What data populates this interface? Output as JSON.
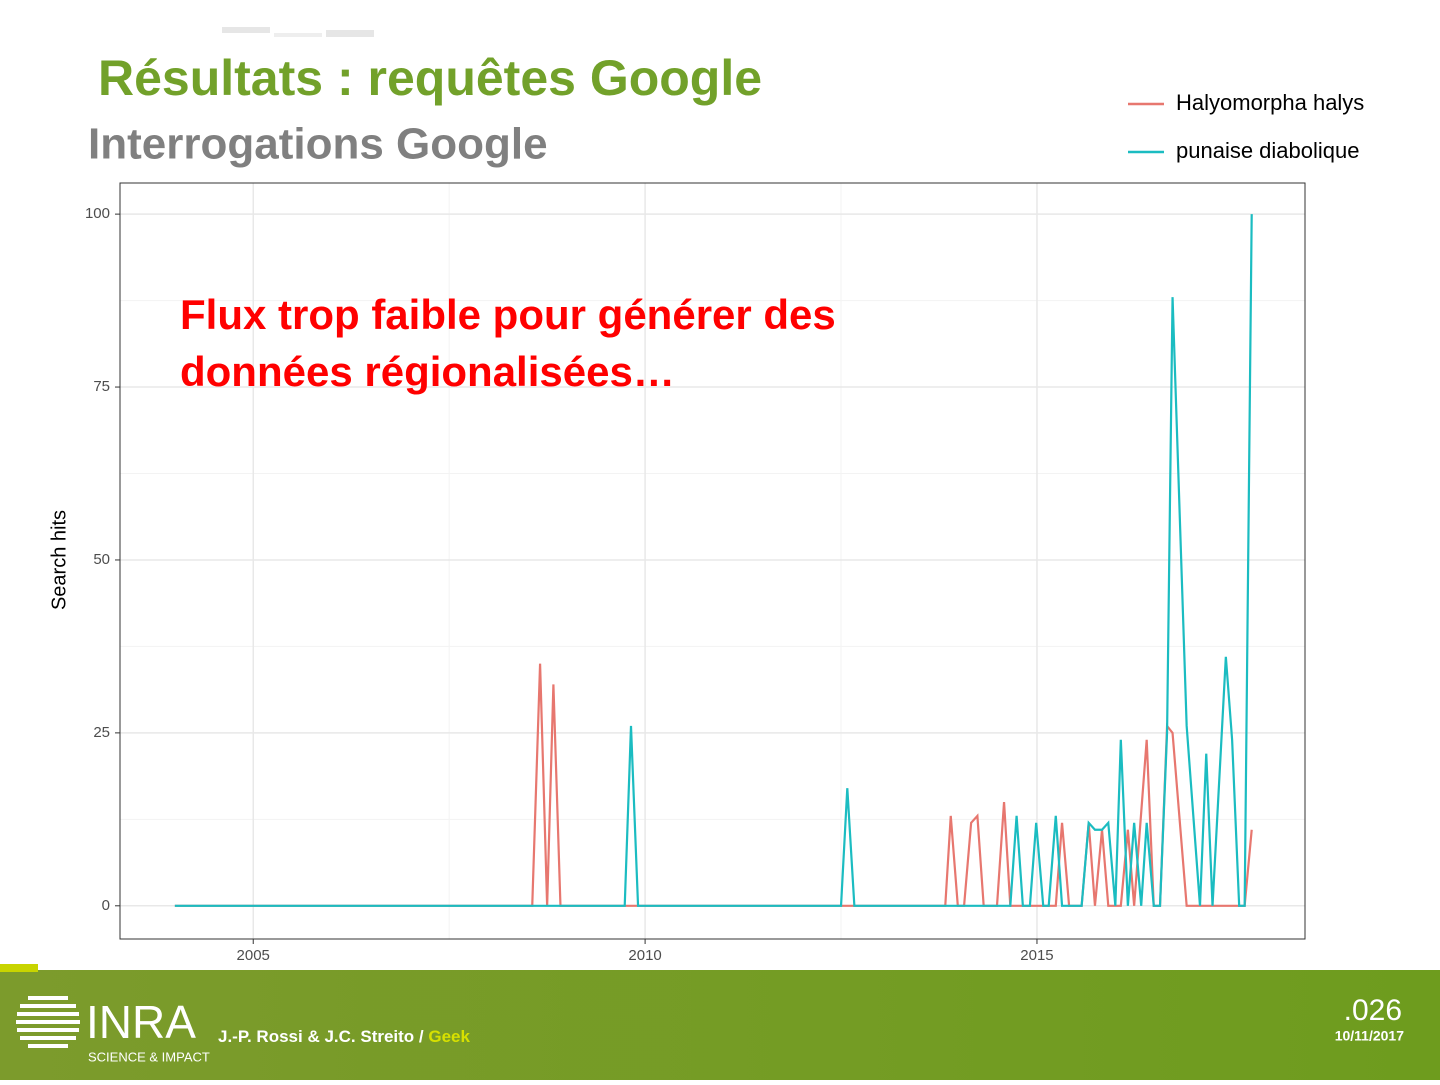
{
  "slide": {
    "title": "Résultats : requêtes Google",
    "subtitle": "Interrogations Google",
    "annotation": [
      "Flux trop faible pour générer des",
      "données régionalisées…"
    ],
    "footer": {
      "authors": "J.-P. Rossi & J.C. Streito / ",
      "tag": "Geek",
      "page": ".026",
      "date": "10/11/2017",
      "logo": "INRA",
      "logo_sub": "SCIENCE & IMPACT"
    }
  },
  "chart_data": {
    "type": "line",
    "y_label": "Search hits",
    "xlim": [
      2003.3,
      2018.42
    ],
    "ylim": [
      -4.8,
      104.5
    ],
    "xticks": [
      2005,
      2010,
      2015
    ],
    "yticks": [
      0,
      25,
      50,
      75,
      100
    ],
    "grid": true,
    "legend": "top-right",
    "series": [
      {
        "name": "Halyomorpha halys",
        "color": "#e7776f",
        "x": [
          2004.0,
          2008.56,
          2008.66,
          2008.75,
          2008.83,
          2008.92,
          2013.83,
          2013.9,
          2013.99,
          2014.07,
          2014.16,
          2014.24,
          2014.32,
          2014.49,
          2014.58,
          2014.66,
          2015.24,
          2015.32,
          2015.41,
          2015.57,
          2015.66,
          2015.74,
          2015.83,
          2015.91,
          2016.07,
          2016.16,
          2016.24,
          2016.4,
          2016.49,
          2016.57,
          2016.66,
          2016.73,
          2016.91,
          2017.65,
          2017.74
        ],
        "values": [
          0,
          0,
          35,
          0,
          32,
          0,
          0,
          13,
          0,
          0,
          12,
          13,
          0,
          0,
          15,
          0,
          0,
          12,
          0,
          0,
          12,
          0,
          11,
          0,
          0,
          11,
          0,
          24,
          0,
          0,
          26,
          25,
          0,
          0,
          11
        ]
      },
      {
        "name": "punaise diabolique",
        "color": "#1bbcc1",
        "x": [
          2004.0,
          2009.74,
          2009.82,
          2009.91,
          2012.5,
          2012.58,
          2012.67,
          2014.66,
          2014.74,
          2014.82,
          2014.91,
          2014.99,
          2015.08,
          2015.15,
          2015.24,
          2015.32,
          2015.57,
          2015.66,
          2015.74,
          2015.83,
          2015.91,
          2016.0,
          2016.07,
          2016.16,
          2016.24,
          2016.33,
          2016.4,
          2016.49,
          2016.57,
          2016.66,
          2016.73,
          2016.91,
          2017.08,
          2017.16,
          2017.24,
          2017.41,
          2017.49,
          2017.58,
          2017.65,
          2017.74
        ],
        "values": [
          0,
          0,
          26,
          0,
          0,
          17,
          0,
          0,
          13,
          0,
          0,
          12,
          0,
          0,
          13,
          0,
          0,
          12,
          11,
          11,
          12,
          0,
          24,
          0,
          12,
          0,
          12,
          0,
          0,
          25,
          88,
          26,
          0,
          22,
          0,
          36,
          24,
          0,
          0,
          100
        ]
      }
    ]
  }
}
